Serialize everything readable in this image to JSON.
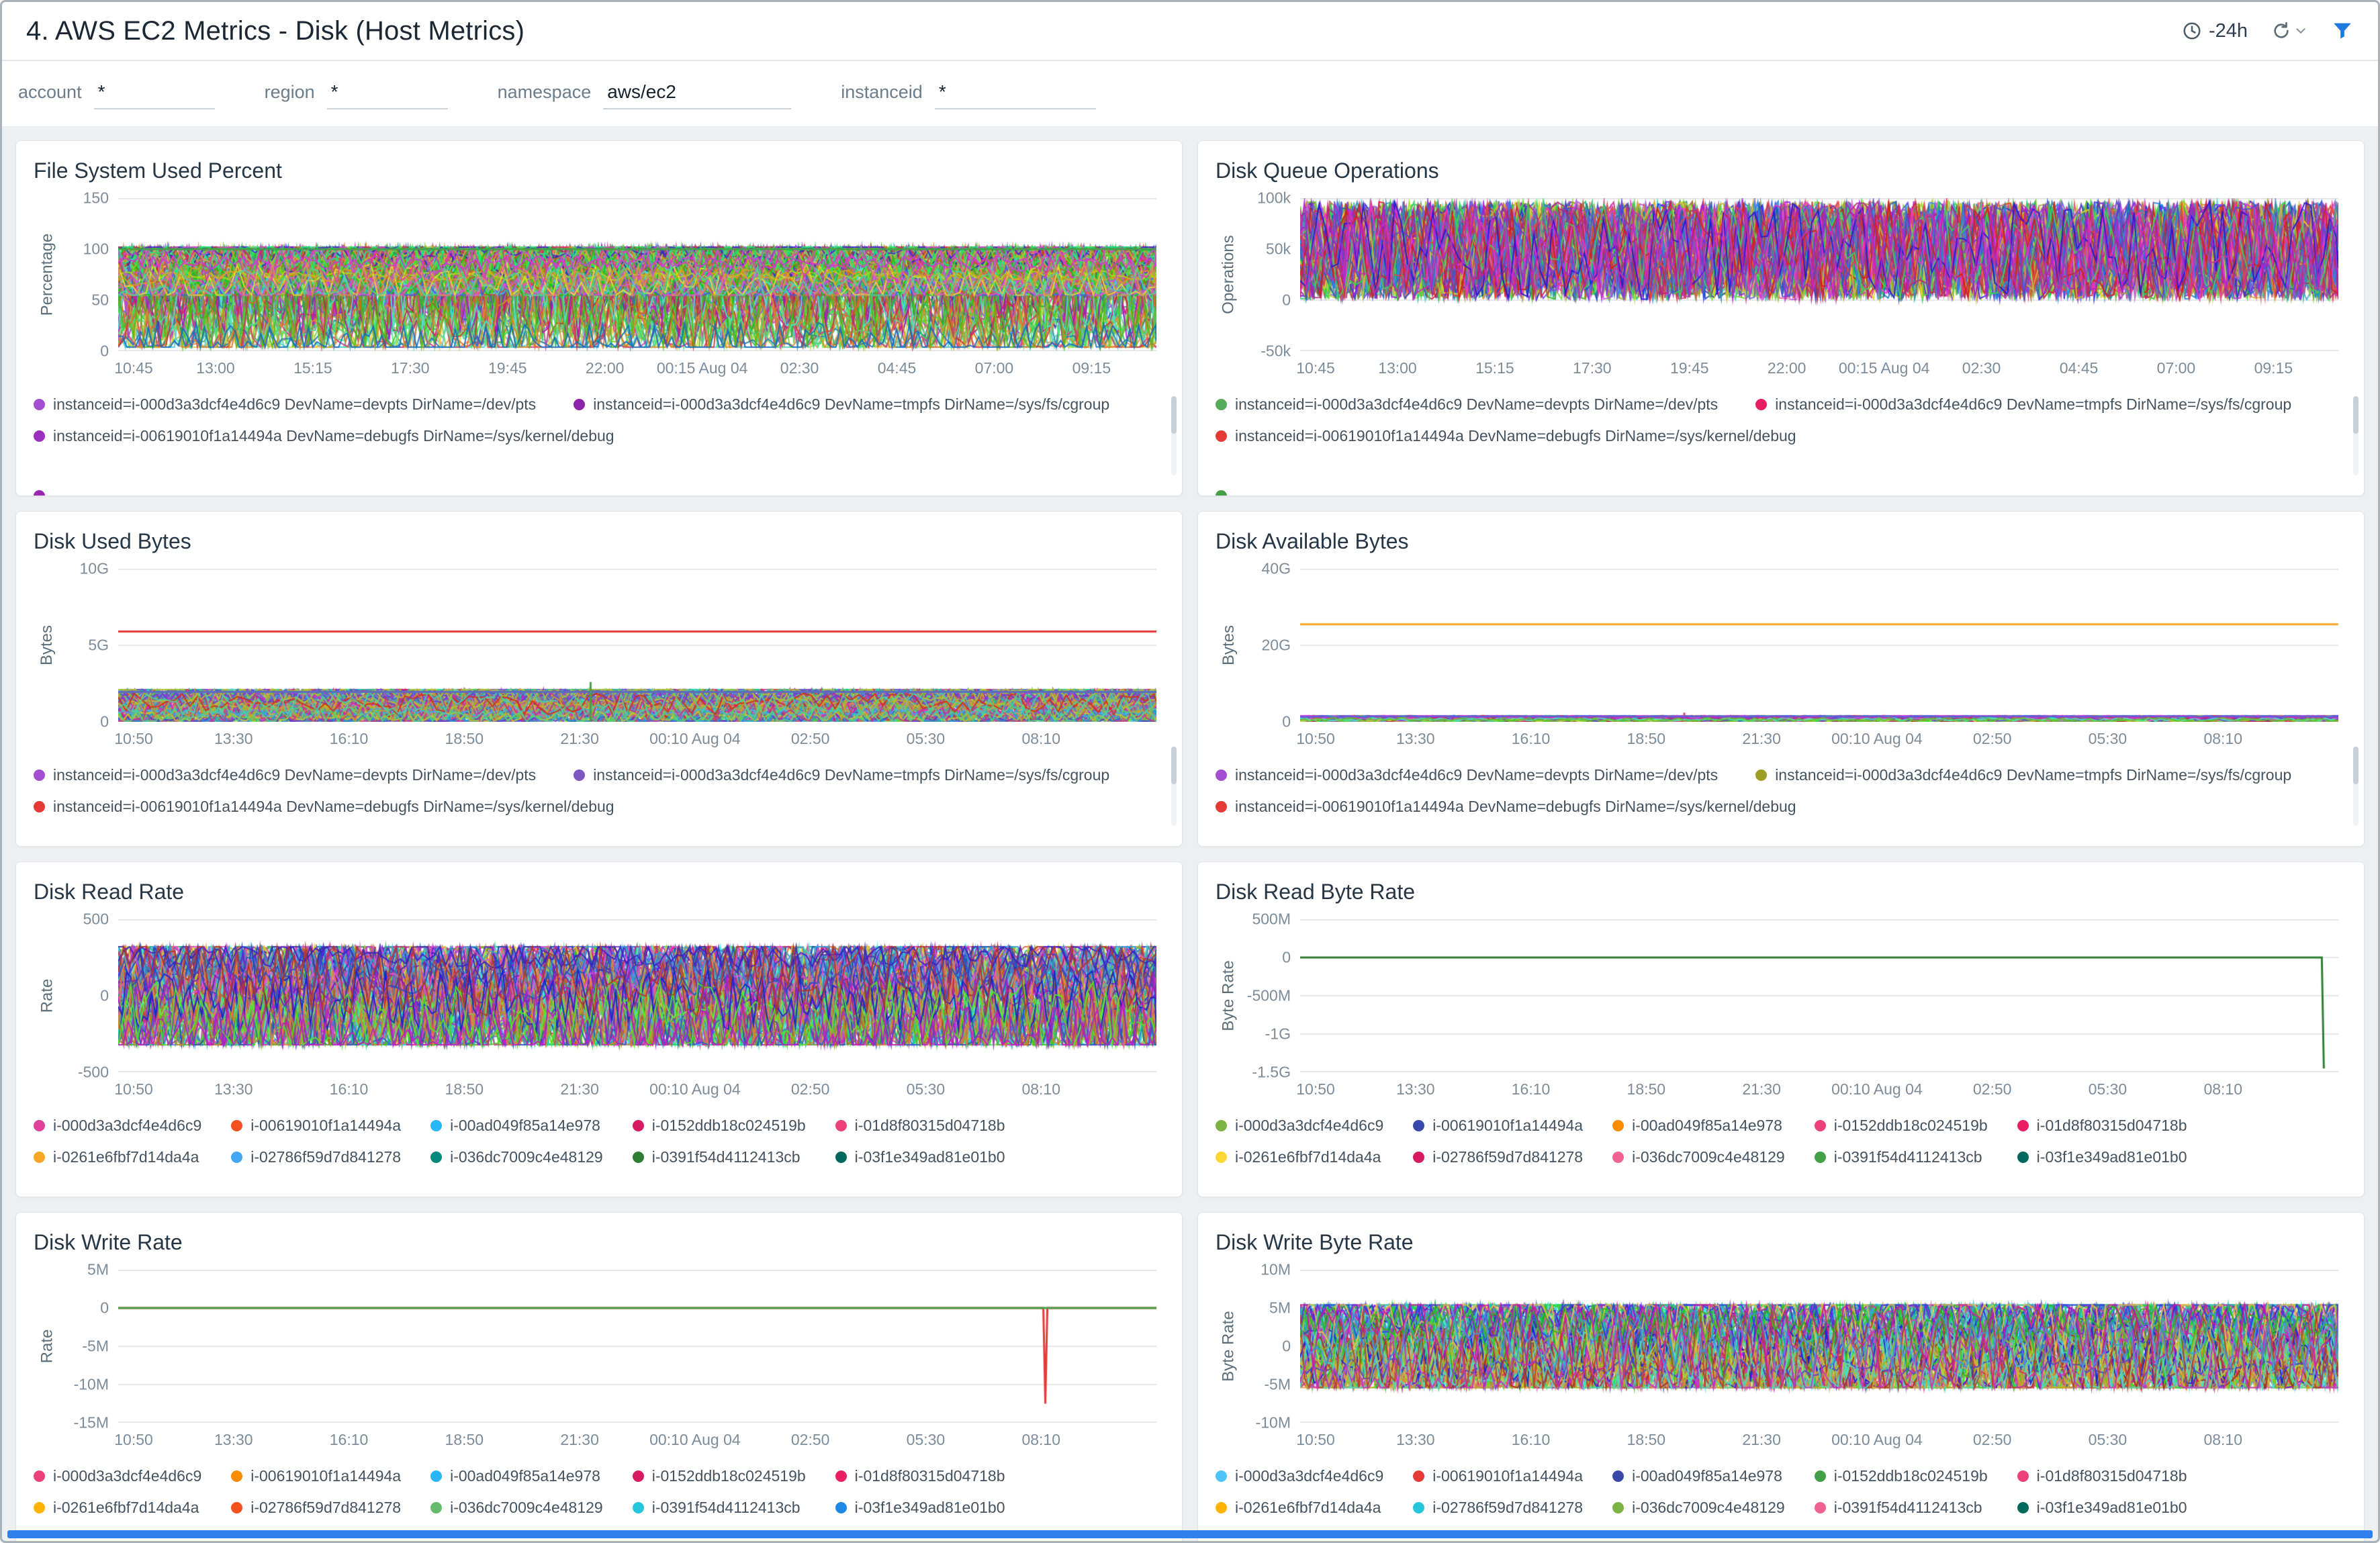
{
  "header": {
    "title": "4. AWS EC2 Metrics - Disk (Host Metrics)",
    "time_range": "-24h"
  },
  "filters": [
    {
      "label": "account",
      "value": "*"
    },
    {
      "label": "region",
      "value": "*"
    },
    {
      "label": "namespace",
      "value": "aws/ec2"
    },
    {
      "label": "instanceid",
      "value": "*"
    }
  ],
  "chart_data": [
    {
      "type": "line",
      "title": "File System Used Percent",
      "ylabel": "Percentage",
      "ydomain": [
        0,
        150
      ],
      "yticks": [
        {
          "label": "150",
          "value": 150
        },
        {
          "label": "100",
          "value": 100
        },
        {
          "label": "50",
          "value": 50
        },
        {
          "label": "0",
          "value": 0
        }
      ],
      "xticks": [
        "10:45",
        "13:00",
        "15:15",
        "17:30",
        "19:45",
        "22:00",
        "00:15 Aug 04",
        "02:30",
        "04:45",
        "07:00",
        "09:15"
      ],
      "xstep": 0.09375,
      "noise": [
        {
          "lo": 4,
          "hi": 102,
          "n": 70
        },
        {
          "lo": 55,
          "hi": 102,
          "n": 35
        }
      ],
      "lines": [
        {
          "type": "flat",
          "color": "#43a047",
          "value": 100
        }
      ],
      "legend_layout": "wrap",
      "legend": [
        {
          "color": "#a44fd0",
          "label": "instanceid=i-000d3a3dcf4e4d6c9 DevName=devpts DirName=/dev/pts"
        },
        {
          "color": "#8e24aa",
          "label": "instanceid=i-000d3a3dcf4e4d6c9 DevName=tmpfs DirName=/sys/fs/cgroup"
        },
        {
          "color": "#9b30c0",
          "label": "instanceid=i-00619010f1a14494a DevName=debugfs DirName=/sys/kernel/debug"
        }
      ]
    },
    {
      "type": "line",
      "title": "Disk Queue Operations",
      "ylabel": "Operations",
      "ydomain": [
        -50000,
        100000
      ],
      "yticks": [
        {
          "label": "100k",
          "value": 100000
        },
        {
          "label": "50k",
          "value": 50000
        },
        {
          "label": "0",
          "value": 0
        },
        {
          "label": "-50k",
          "value": -50000
        }
      ],
      "xticks": [
        "10:45",
        "13:00",
        "15:15",
        "17:30",
        "19:45",
        "22:00",
        "00:15 Aug 04",
        "02:30",
        "04:45",
        "07:00",
        "09:15"
      ],
      "xstep": 0.09375,
      "noise": [
        {
          "lo": 500,
          "hi": 97000,
          "n": 90,
          "full": true
        }
      ],
      "lines": [],
      "legend_layout": "wrap",
      "legend": [
        {
          "color": "#57ab5a",
          "label": "instanceid=i-000d3a3dcf4e4d6c9 DevName=devpts DirName=/dev/pts"
        },
        {
          "color": "#e91e63",
          "label": "instanceid=i-000d3a3dcf4e4d6c9 DevName=tmpfs DirName=/sys/fs/cgroup"
        },
        {
          "color": "#e53935",
          "label": "instanceid=i-00619010f1a14494a DevName=debugfs DirName=/sys/kernel/debug"
        }
      ]
    },
    {
      "type": "line",
      "title": "Disk Used Bytes",
      "ylabel": "Bytes",
      "ydomain": [
        0,
        10000000000
      ],
      "yticks": [
        {
          "label": "10G",
          "value": 10000000000
        },
        {
          "label": "5G",
          "value": 5000000000
        },
        {
          "label": "0",
          "value": 0
        }
      ],
      "xticks": [
        "10:50",
        "13:30",
        "16:10",
        "18:50",
        "21:30",
        "00:10 Aug 04",
        "02:50",
        "05:30",
        "08:10"
      ],
      "xstep": 0.111111,
      "noise": [
        {
          "lo": 50000000,
          "hi": 2100000000,
          "n": 85
        }
      ],
      "lines": [
        {
          "type": "flat",
          "color": "#e53935",
          "value": 5900000000
        },
        {
          "type": "flat",
          "color": "#5c6bc0",
          "value": 1950000000
        },
        {
          "type": "vspike",
          "color": "#43a047",
          "x": 0.455,
          "from": 0,
          "to": 2600000000
        }
      ],
      "legend_layout": "wrap",
      "legend": [
        {
          "color": "#a44fd0",
          "label": "instanceid=i-000d3a3dcf4e4d6c9 DevName=devpts DirName=/dev/pts"
        },
        {
          "color": "#7e57c2",
          "label": "instanceid=i-000d3a3dcf4e4d6c9 DevName=tmpfs DirName=/sys/fs/cgroup"
        },
        {
          "color": "#e53935",
          "label": "instanceid=i-00619010f1a14494a DevName=debugfs DirName=/sys/kernel/debug"
        }
      ]
    },
    {
      "type": "line",
      "title": "Disk Available Bytes",
      "ylabel": "Bytes",
      "ydomain": [
        0,
        40000000000
      ],
      "yticks": [
        {
          "label": "40G",
          "value": 40000000000
        },
        {
          "label": "20G",
          "value": 20000000000
        },
        {
          "label": "0",
          "value": 0
        }
      ],
      "xticks": [
        "10:50",
        "13:30",
        "16:10",
        "18:50",
        "21:30",
        "00:10 Aug 04",
        "02:50",
        "05:30",
        "08:10"
      ],
      "xstep": 0.111111,
      "noise": [
        {
          "lo": 100000000,
          "hi": 1600000000,
          "n": 80
        }
      ],
      "lines": [
        {
          "type": "flat",
          "color": "#f9a825",
          "value": 25500000000
        },
        {
          "type": "vspike",
          "color": "#ec407a",
          "x": 0.37,
          "from": 1700000000,
          "to": 2400000000
        }
      ],
      "legend_layout": "wrap",
      "legend": [
        {
          "color": "#a44fd0",
          "label": "instanceid=i-000d3a3dcf4e4d6c9 DevName=devpts DirName=/dev/pts"
        },
        {
          "color": "#9e9d24",
          "label": "instanceid=i-000d3a3dcf4e4d6c9 DevName=tmpfs DirName=/sys/fs/cgroup"
        },
        {
          "color": "#e53935",
          "label": "instanceid=i-00619010f1a14494a DevName=debugfs DirName=/sys/kernel/debug"
        }
      ]
    },
    {
      "type": "line",
      "title": "Disk Read Rate",
      "ylabel": "Rate",
      "ydomain": [
        -500,
        500
      ],
      "yticks": [
        {
          "label": "500",
          "value": 500
        },
        {
          "label": "0",
          "value": 0
        },
        {
          "label": "-500",
          "value": -500
        }
      ],
      "xticks": [
        "10:50",
        "13:30",
        "16:10",
        "18:50",
        "21:30",
        "00:10 Aug 04",
        "02:50",
        "05:30",
        "08:10"
      ],
      "xstep": 0.111111,
      "noise": [
        {
          "lo": -320,
          "hi": 320,
          "n": 90
        }
      ],
      "lines": [],
      "legend_layout": "grid5",
      "legend": [
        {
          "color": "#e0409a",
          "label": "i-000d3a3dcf4e4d6c9"
        },
        {
          "color": "#f4511e",
          "label": "i-00619010f1a14494a"
        },
        {
          "color": "#29b6f6",
          "label": "i-00ad049f85a14e978"
        },
        {
          "color": "#d81b60",
          "label": "i-0152ddb18c024519b"
        },
        {
          "color": "#ec407a",
          "label": "i-01d8f80315d04718b"
        },
        {
          "color": "#f9a825",
          "label": "i-0261e6fbf7d14da4a"
        },
        {
          "color": "#42a5f5",
          "label": "i-02786f59d7d841278"
        },
        {
          "color": "#00897b",
          "label": "i-036dc7009c4e48129"
        },
        {
          "color": "#2e7d32",
          "label": "i-0391f54d4112413cb"
        },
        {
          "color": "#00695c",
          "label": "i-03f1e349ad81e01b0"
        }
      ]
    },
    {
      "type": "line",
      "title": "Disk Read Byte Rate",
      "ylabel": "Byte Rate",
      "ydomain": [
        -1500000000,
        500000000
      ],
      "yticks": [
        {
          "label": "500M",
          "value": 500000000
        },
        {
          "label": "0",
          "value": 0
        },
        {
          "label": "-500M",
          "value": -500000000
        },
        {
          "label": "-1G",
          "value": -1000000000
        },
        {
          "label": "-1.5G",
          "value": -1500000000
        }
      ],
      "xticks": [
        "10:50",
        "13:30",
        "16:10",
        "18:50",
        "21:30",
        "00:10 Aug 04",
        "02:50",
        "05:30",
        "08:10"
      ],
      "xstep": 0.111111,
      "noise": [],
      "lines": [
        {
          "type": "flat_spike",
          "color": "#2e7d32",
          "value": 0,
          "spike_x": 0.986,
          "spike_value": -1450000000,
          "return": false
        }
      ],
      "legend_layout": "grid5",
      "legend": [
        {
          "color": "#7cb342",
          "label": "i-000d3a3dcf4e4d6c9"
        },
        {
          "color": "#3949ab",
          "label": "i-00619010f1a14494a"
        },
        {
          "color": "#fb8c00",
          "label": "i-00ad049f85a14e978"
        },
        {
          "color": "#ec407a",
          "label": "i-0152ddb18c024519b"
        },
        {
          "color": "#e91e63",
          "label": "i-01d8f80315d04718b"
        },
        {
          "color": "#fdd835",
          "label": "i-0261e6fbf7d14da4a"
        },
        {
          "color": "#d81b60",
          "label": "i-02786f59d7d841278"
        },
        {
          "color": "#f06292",
          "label": "i-036dc7009c4e48129"
        },
        {
          "color": "#43a047",
          "label": "i-0391f54d4112413cb"
        },
        {
          "color": "#00695c",
          "label": "i-03f1e349ad81e01b0"
        }
      ]
    },
    {
      "type": "line",
      "title": "Disk Write Rate",
      "ylabel": "Rate",
      "ydomain": [
        -15000000,
        5000000
      ],
      "yticks": [
        {
          "label": "5M",
          "value": 5000000
        },
        {
          "label": "0",
          "value": 0
        },
        {
          "label": "-5M",
          "value": -5000000
        },
        {
          "label": "-10M",
          "value": -10000000
        },
        {
          "label": "-15M",
          "value": -15000000
        }
      ],
      "xticks": [
        "10:50",
        "13:30",
        "16:10",
        "18:50",
        "21:30",
        "00:10 Aug 04",
        "02:50",
        "05:30",
        "08:10"
      ],
      "xstep": 0.111111,
      "noise": [],
      "lines": [
        {
          "type": "flat_spike",
          "color": "#e53935",
          "value": 0,
          "spike_x": 0.893,
          "spike_value": -12500000,
          "return": true
        },
        {
          "type": "flat",
          "color": "#43a047",
          "value": 0
        }
      ],
      "legend_layout": "grid5",
      "legend": [
        {
          "color": "#ec407a",
          "label": "i-000d3a3dcf4e4d6c9"
        },
        {
          "color": "#fb8c00",
          "label": "i-00619010f1a14494a"
        },
        {
          "color": "#29b6f6",
          "label": "i-00ad049f85a14e978"
        },
        {
          "color": "#d81b60",
          "label": "i-0152ddb18c024519b"
        },
        {
          "color": "#e91e63",
          "label": "i-01d8f80315d04718b"
        },
        {
          "color": "#ffb300",
          "label": "i-0261e6fbf7d14da4a"
        },
        {
          "color": "#f4511e",
          "label": "i-02786f59d7d841278"
        },
        {
          "color": "#66bb6a",
          "label": "i-036dc7009c4e48129"
        },
        {
          "color": "#26c6da",
          "label": "i-0391f54d4112413cb"
        },
        {
          "color": "#1e88e5",
          "label": "i-03f1e349ad81e01b0"
        }
      ]
    },
    {
      "type": "line",
      "title": "Disk Write Byte Rate",
      "ylabel": "Byte Rate",
      "ydomain": [
        -10000000,
        10000000
      ],
      "yticks": [
        {
          "label": "10M",
          "value": 10000000
        },
        {
          "label": "5M",
          "value": 5000000
        },
        {
          "label": "0",
          "value": 0
        },
        {
          "label": "-5M",
          "value": -5000000
        },
        {
          "label": "-10M",
          "value": -10000000
        }
      ],
      "xticks": [
        "10:50",
        "13:30",
        "16:10",
        "18:50",
        "21:30",
        "00:10 Aug 04",
        "02:50",
        "05:30",
        "08:10"
      ],
      "xstep": 0.111111,
      "noise": [
        {
          "lo": -5400000,
          "hi": 5400000,
          "n": 90
        }
      ],
      "lines": [],
      "legend_layout": "grid5",
      "legend": [
        {
          "color": "#4fc3f7",
          "label": "i-000d3a3dcf4e4d6c9"
        },
        {
          "color": "#e53935",
          "label": "i-00619010f1a14494a"
        },
        {
          "color": "#3949ab",
          "label": "i-00ad049f85a14e978"
        },
        {
          "color": "#43a047",
          "label": "i-0152ddb18c024519b"
        },
        {
          "color": "#ec407a",
          "label": "i-01d8f80315d04718b"
        },
        {
          "color": "#ffb300",
          "label": "i-0261e6fbf7d14da4a"
        },
        {
          "color": "#26c6da",
          "label": "i-02786f59d7d841278"
        },
        {
          "color": "#7cb342",
          "label": "i-036dc7009c4e48129"
        },
        {
          "color": "#f06292",
          "label": "i-0391f54d4112413cb"
        },
        {
          "color": "#00695c",
          "label": "i-03f1e349ad81e01b0"
        }
      ]
    }
  ],
  "accent_colors": {
    "brand_blue": "#1f7ae0",
    "scrollbar_blue": "#2f80ed"
  }
}
